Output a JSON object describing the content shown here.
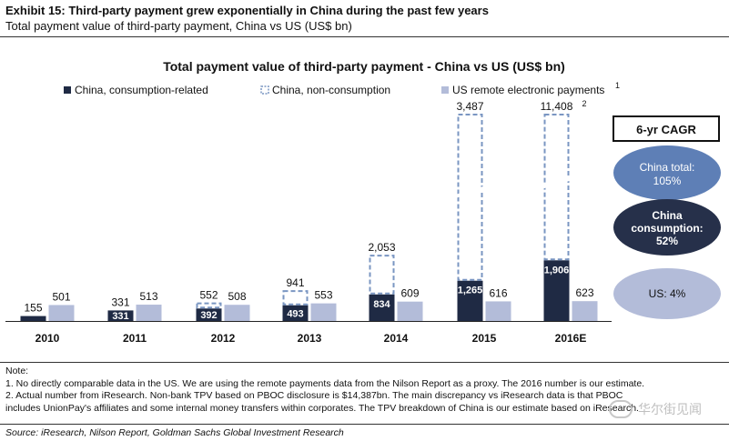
{
  "exhibit": {
    "title": "Exhibit 15: Third-party payment grew exponentially in China during the past few years",
    "subtitle": "Total payment value of third-party payment, China vs US (US$ bn)"
  },
  "chart_data": {
    "type": "bar",
    "title": "Total payment value of third-party payment - China vs US (US$ bn)",
    "categories": [
      "2010",
      "2011",
      "2012",
      "2013",
      "2014",
      "2015",
      "2016E"
    ],
    "series": [
      {
        "name": "China, consumption-related",
        "values": [
          155,
          331,
          392,
          493,
          834,
          1265,
          1906
        ],
        "color": "#1f2a44",
        "stack": "China"
      },
      {
        "name": "China, non-consumption",
        "values": [
          0,
          0,
          160,
          448,
          1219,
          2222,
          9502
        ],
        "color": "#ffffff",
        "border": "#7a96c2",
        "stack": "China"
      },
      {
        "name": "US remote electronic payments",
        "values": [
          501,
          513,
          508,
          553,
          609,
          616,
          623
        ],
        "color": "#b3bcd9",
        "stack": "US"
      }
    ],
    "china_total_labels": [
      "155",
      "331",
      "552",
      "941",
      "2,053",
      "3,487",
      "11,408"
    ],
    "china_consumption_labels": [
      "",
      "331",
      "392",
      "493",
      "834",
      "1,265",
      "1,906"
    ],
    "us_labels": [
      "501",
      "513",
      "508",
      "553",
      "609",
      "616",
      "623"
    ],
    "legend_superscript": "1",
    "top_superscript": "2",
    "broken_axis": true,
    "cagr": {
      "header": "6-yr CAGR",
      "items": [
        {
          "label": "China total:",
          "value": "105%",
          "color": "#5e7fb6"
        },
        {
          "label": "China consumption:",
          "value": "52%",
          "color": "#26304a"
        },
        {
          "label": "US:",
          "value": "4%",
          "color": "#b3bcd9"
        }
      ]
    }
  },
  "notes": {
    "heading": "Note:",
    "lines": [
      "1. No directly comparable data in the US. We are using the remote payments data from the Nilson Report as a proxy. The 2016 number is our estimate.",
      "2. Actual number from iResearch.  Non-bank TPV based on PBOC disclosure is $14,387bn. The main discrepancy vs iResearch data is that PBOC",
      "includes UnionPay's affiliates and some internal money transfers within corporates. The TPV breakdown of China is our estimate based on iResearch."
    ]
  },
  "source": "Source: iResearch, Nilson Report, Goldman Sachs Global Investment Research",
  "watermark": "华尔街见闻"
}
